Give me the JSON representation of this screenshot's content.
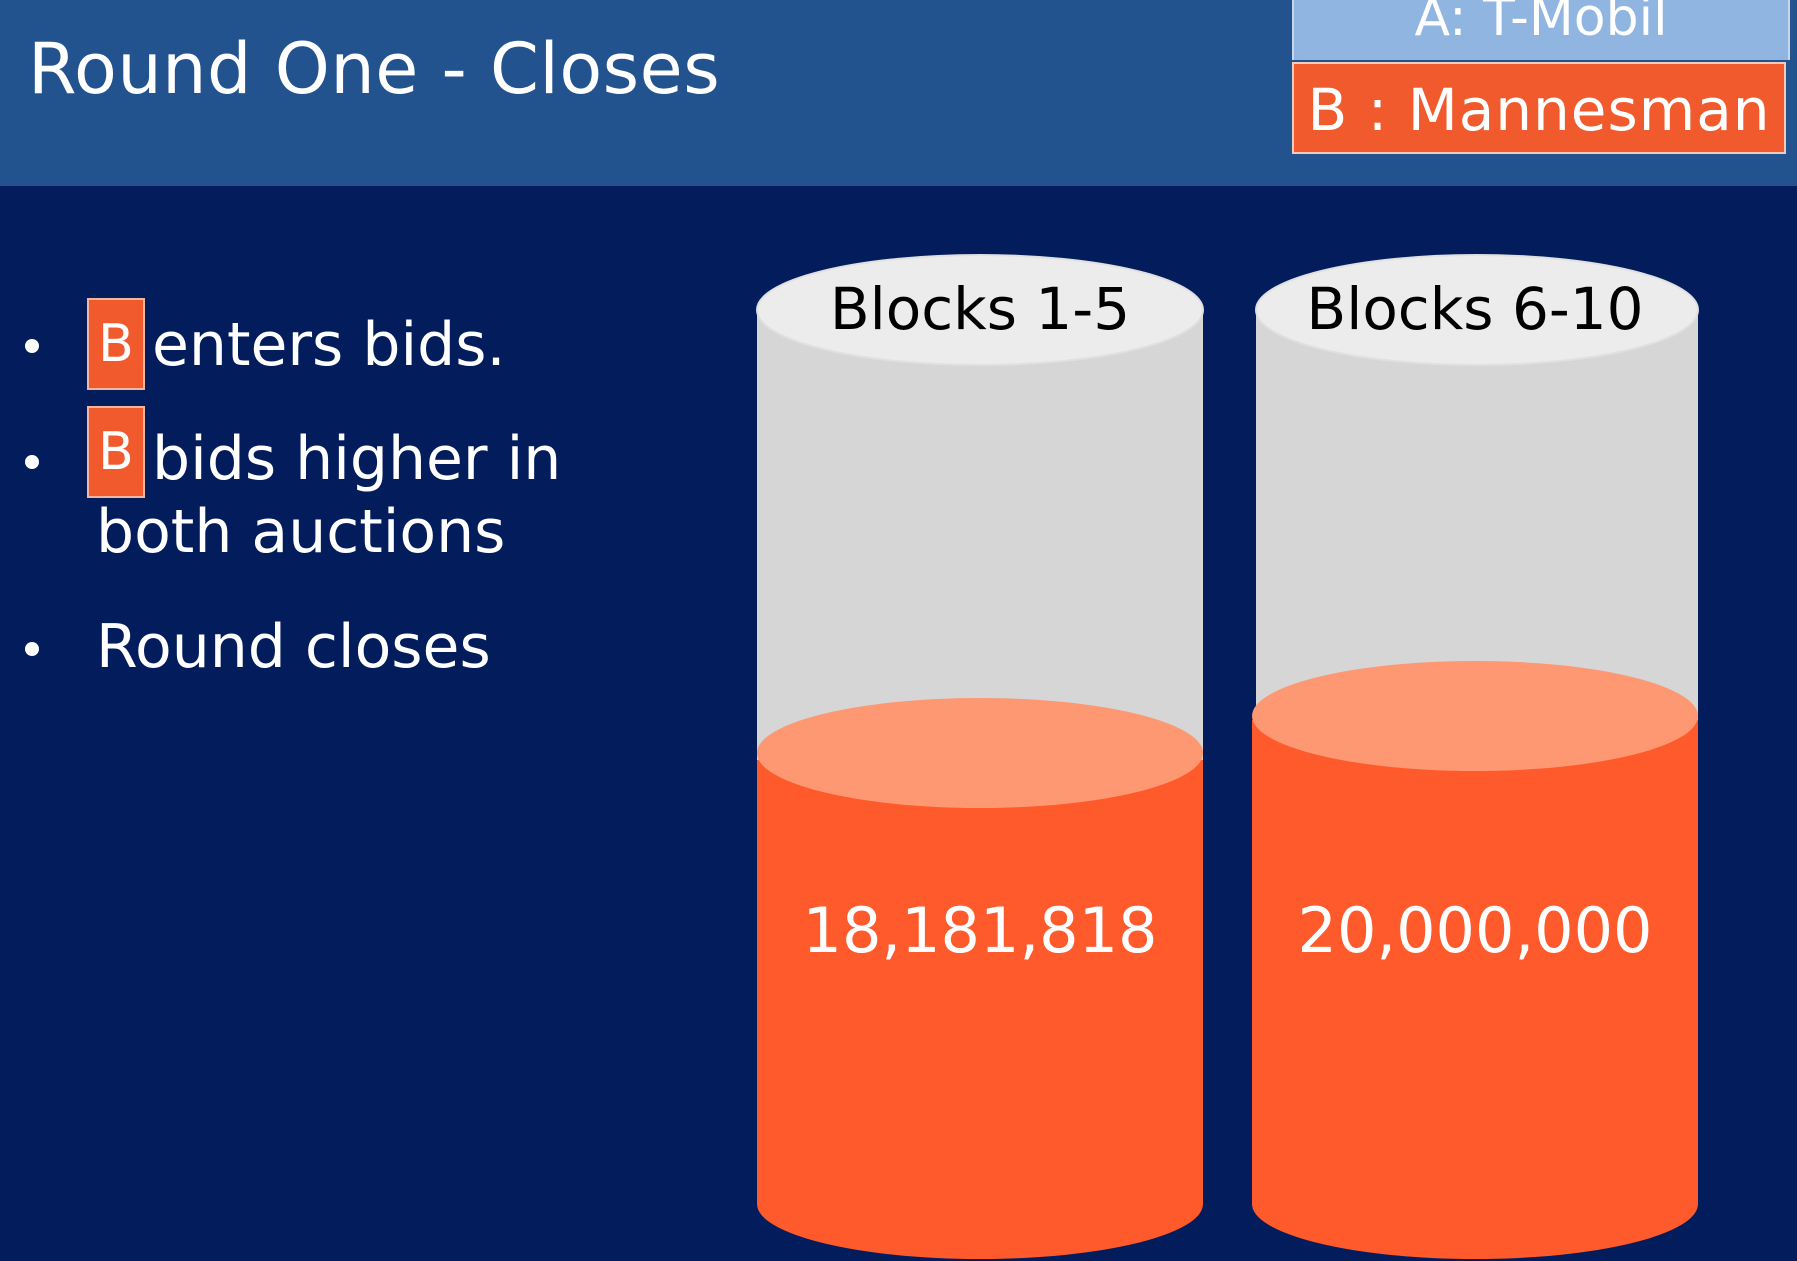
{
  "slide": {
    "title": "Round One - Closes"
  },
  "legend": {
    "a_label": "A: T-Mobil",
    "b_label": "B : Mannesman",
    "a_color": "#8fb5e0",
    "b_color": "#f05a2c"
  },
  "bullets": [
    {
      "badge": "B",
      "text": "enters bids."
    },
    {
      "badge": "B",
      "text": "bids higher in",
      "text2": "both auctions"
    },
    {
      "badge": "",
      "text": "Round closes"
    }
  ],
  "cylinders": [
    {
      "label": "Blocks 1-5",
      "value_text": "18,181,818",
      "fill_fraction": 0.52
    },
    {
      "label": "Blocks 6-10",
      "value_text": "20,000,000",
      "fill_fraction": 0.57
    }
  ]
}
